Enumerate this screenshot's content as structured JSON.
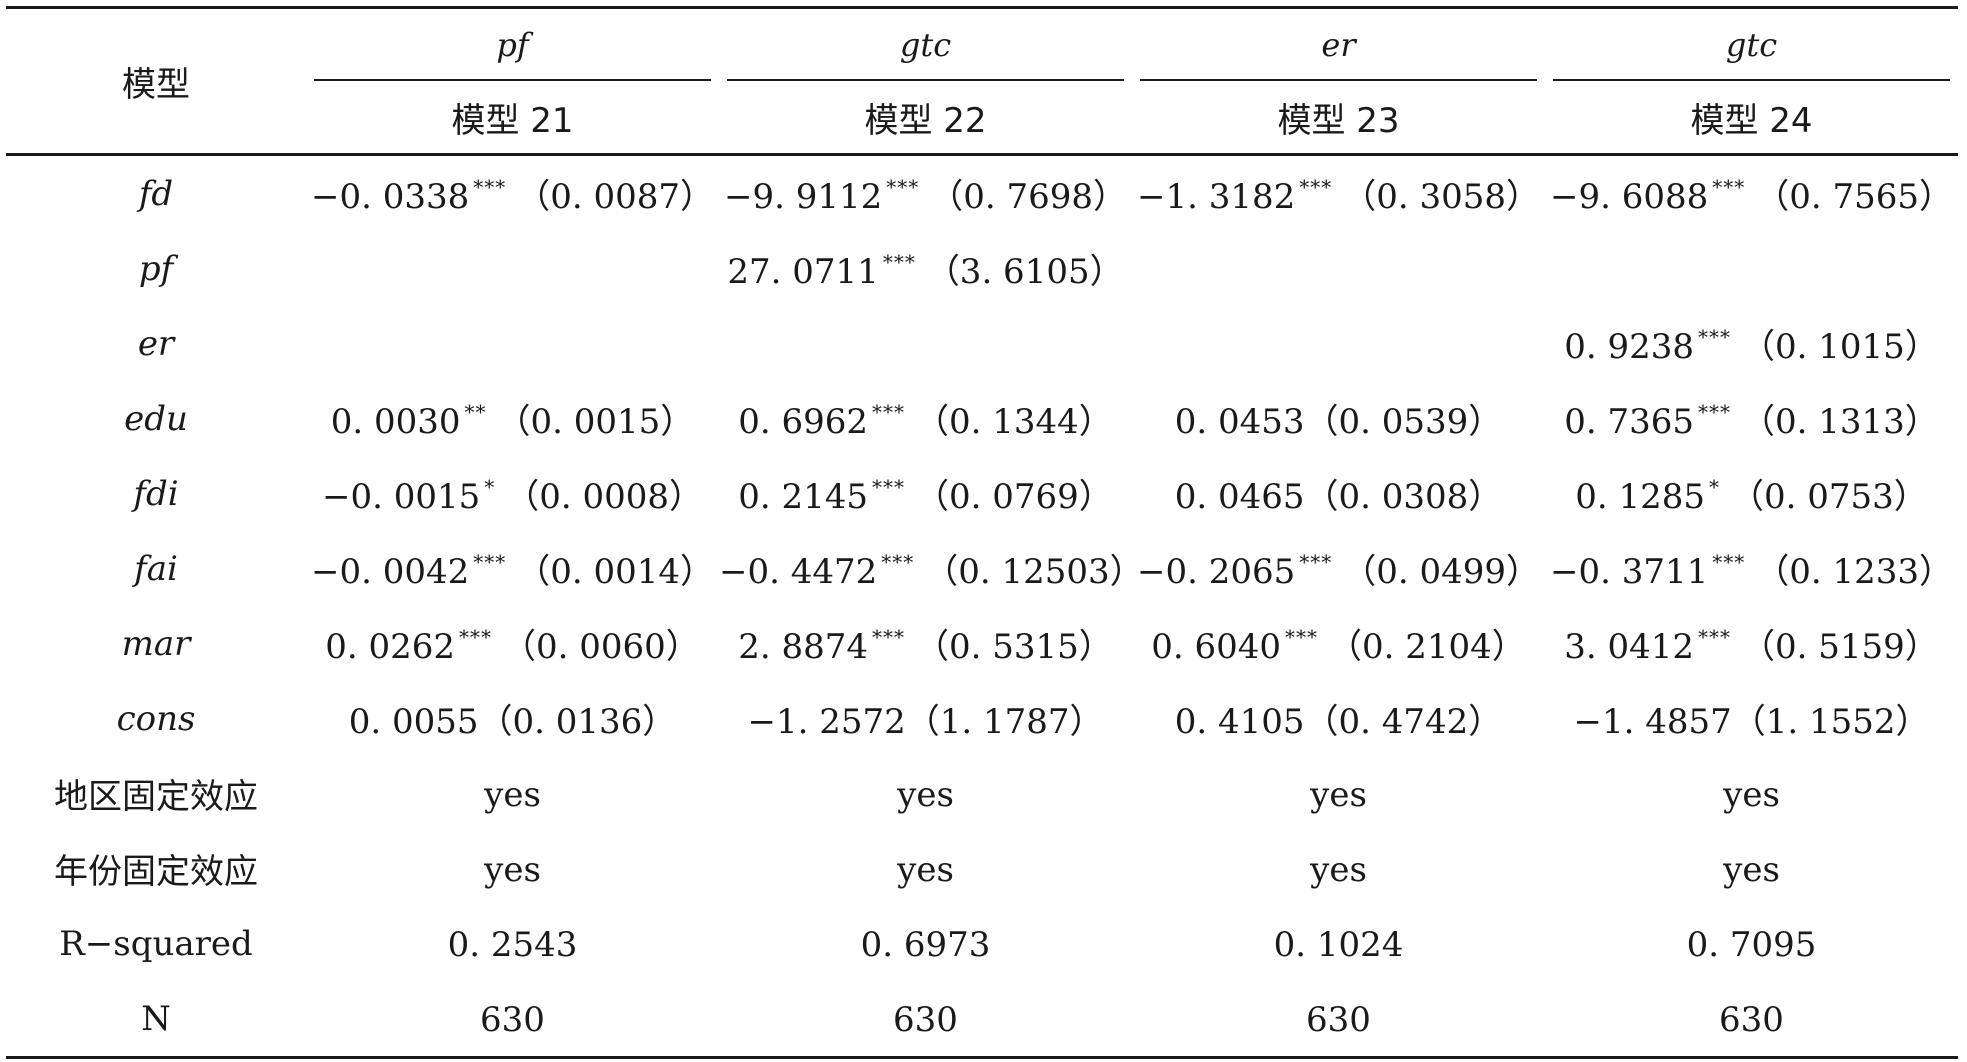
{
  "table": {
    "header": {
      "model_label": "模型",
      "dependent_vars": [
        "pf",
        "gtc",
        "er",
        "gtc"
      ],
      "model_names": [
        "模型 21",
        "模型 22",
        "模型 23",
        "模型 24"
      ]
    },
    "rows": [
      {
        "label": "fd",
        "italic": true,
        "cells": [
          {
            "coef": "−0. 0338",
            "stars": "***",
            "se": "（0. 0087）"
          },
          {
            "coef": "−9. 9112",
            "stars": "***",
            "se": "（0. 7698）"
          },
          {
            "coef": "−1. 3182",
            "stars": "***",
            "se": "（0. 3058）"
          },
          {
            "coef": "−9. 6088",
            "stars": "***",
            "se": "（0. 7565）"
          }
        ]
      },
      {
        "label": "pf",
        "italic": true,
        "cells": [
          {
            "coef": "",
            "stars": "",
            "se": ""
          },
          {
            "coef": "27. 0711",
            "stars": "***",
            "se": "（3. 6105）"
          },
          {
            "coef": "",
            "stars": "",
            "se": ""
          },
          {
            "coef": "",
            "stars": "",
            "se": ""
          }
        ]
      },
      {
        "label": "er",
        "italic": true,
        "cells": [
          {
            "coef": "",
            "stars": "",
            "se": ""
          },
          {
            "coef": "",
            "stars": "",
            "se": ""
          },
          {
            "coef": "",
            "stars": "",
            "se": ""
          },
          {
            "coef": "0. 9238",
            "stars": "***",
            "se": "（0. 1015）"
          }
        ]
      },
      {
        "label": "edu",
        "italic": true,
        "cells": [
          {
            "coef": "0. 0030",
            "stars": "**",
            "se": "（0. 0015）"
          },
          {
            "coef": "0. 6962",
            "stars": "***",
            "se": "（0. 1344）"
          },
          {
            "coef": "0. 0453",
            "stars": "",
            "se": "（0. 0539）"
          },
          {
            "coef": "0. 7365",
            "stars": "***",
            "se": "（0. 1313）"
          }
        ]
      },
      {
        "label": "fdi",
        "italic": true,
        "cells": [
          {
            "coef": "−0. 0015",
            "stars": "*",
            "se": "（0. 0008）"
          },
          {
            "coef": "0. 2145",
            "stars": "***",
            "se": "（0. 0769）"
          },
          {
            "coef": "0. 0465",
            "stars": "",
            "se": "（0. 0308）"
          },
          {
            "coef": "0. 1285",
            "stars": "*",
            "se": "（0. 0753）"
          }
        ]
      },
      {
        "label": "fai",
        "italic": true,
        "cells": [
          {
            "coef": "−0. 0042",
            "stars": "***",
            "se": "（0. 0014）"
          },
          {
            "coef": "−0. 4472",
            "stars": "***",
            "se": "（0. 12503）"
          },
          {
            "coef": "−0. 2065",
            "stars": "***",
            "se": "（0. 0499）"
          },
          {
            "coef": "−0. 3711",
            "stars": "***",
            "se": "（0. 1233）"
          }
        ]
      },
      {
        "label": "mar",
        "italic": true,
        "cells": [
          {
            "coef": "0. 0262",
            "stars": "***",
            "se": "（0. 0060）"
          },
          {
            "coef": "2. 8874",
            "stars": "***",
            "se": "（0. 5315）"
          },
          {
            "coef": "0. 6040",
            "stars": "***",
            "se": "（0. 2104）"
          },
          {
            "coef": "3. 0412",
            "stars": "***",
            "se": "（0. 5159）"
          }
        ]
      },
      {
        "label": "cons",
        "italic": true,
        "cells": [
          {
            "coef": "0. 0055",
            "stars": "",
            "se": "（0. 0136）"
          },
          {
            "coef": "−1. 2572",
            "stars": "",
            "se": "（1. 1787）"
          },
          {
            "coef": "0. 4105",
            "stars": "",
            "se": "（0. 4742）"
          },
          {
            "coef": "−1. 4857",
            "stars": "",
            "se": "（1. 1552）"
          }
        ]
      },
      {
        "label": "地区固定效应",
        "italic": false,
        "zh": true,
        "cells": [
          {
            "coef": "yes",
            "stars": "",
            "se": ""
          },
          {
            "coef": "yes",
            "stars": "",
            "se": ""
          },
          {
            "coef": "yes",
            "stars": "",
            "se": ""
          },
          {
            "coef": "yes",
            "stars": "",
            "se": ""
          }
        ]
      },
      {
        "label": "年份固定效应",
        "italic": false,
        "zh": true,
        "cells": [
          {
            "coef": "yes",
            "stars": "",
            "se": ""
          },
          {
            "coef": "yes",
            "stars": "",
            "se": ""
          },
          {
            "coef": "yes",
            "stars": "",
            "se": ""
          },
          {
            "coef": "yes",
            "stars": "",
            "se": ""
          }
        ]
      },
      {
        "label": "R−squared",
        "italic": false,
        "cells": [
          {
            "coef": "0. 2543",
            "stars": "",
            "se": ""
          },
          {
            "coef": "0. 6973",
            "stars": "",
            "se": ""
          },
          {
            "coef": "0. 1024",
            "stars": "",
            "se": ""
          },
          {
            "coef": "0. 7095",
            "stars": "",
            "se": ""
          }
        ]
      },
      {
        "label": "N",
        "italic": false,
        "cells": [
          {
            "coef": "630",
            "stars": "",
            "se": ""
          },
          {
            "coef": "630",
            "stars": "",
            "se": ""
          },
          {
            "coef": "630",
            "stars": "",
            "se": ""
          },
          {
            "coef": "630",
            "stars": "",
            "se": ""
          }
        ]
      }
    ]
  }
}
